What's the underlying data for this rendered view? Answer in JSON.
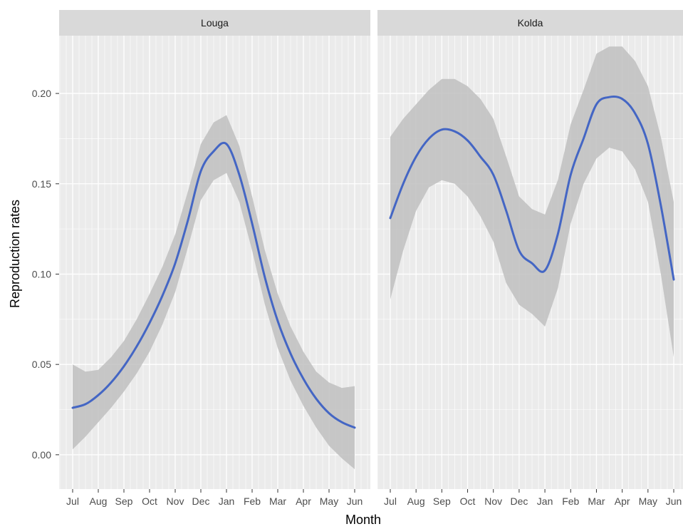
{
  "chart_data": {
    "type": "line",
    "xlabel": "Month",
    "ylabel": "Reproduction rates",
    "ylim": [
      -0.019,
      0.232
    ],
    "y_ticks": [
      {
        "value": 0.0,
        "label": "0.00"
      },
      {
        "value": 0.05,
        "label": "0.05"
      },
      {
        "value": 0.1,
        "label": "0.10"
      },
      {
        "value": 0.15,
        "label": "0.15"
      },
      {
        "value": 0.2,
        "label": "0.20"
      }
    ],
    "x_ticks": [
      "Jul",
      "Aug",
      "Sep",
      "Oct",
      "Nov",
      "Dec",
      "Jan",
      "Feb",
      "Mar",
      "Apr",
      "May",
      "Jun"
    ],
    "grid": true,
    "colors": {
      "line": "#4466c4",
      "ribbon": "#c0c0c0",
      "panel_bg": "#ebebeb",
      "strip_bg": "#d9d9d9",
      "grid": "#ffffff"
    },
    "panels": [
      {
        "title": "Louga",
        "series": [
          {
            "name": "",
            "x": [
              1,
              1.5,
              2,
              2.5,
              3,
              3.5,
              4,
              4.5,
              5,
              5.5,
              6,
              6.5,
              7,
              7.5,
              8,
              8.5,
              9,
              9.5,
              10,
              10.5,
              11,
              11.5,
              12
            ],
            "y": [
              0.026,
              0.028,
              0.033,
              0.04,
              0.049,
              0.06,
              0.073,
              0.088,
              0.106,
              0.13,
              0.157,
              0.168,
              0.172,
              0.155,
              0.128,
              0.098,
              0.074,
              0.056,
              0.042,
              0.031,
              0.023,
              0.018,
              0.015
            ],
            "lower": [
              0.003,
              0.01,
              0.018,
              0.026,
              0.035,
              0.045,
              0.057,
              0.072,
              0.09,
              0.115,
              0.141,
              0.152,
              0.156,
              0.14,
              0.113,
              0.083,
              0.059,
              0.041,
              0.027,
              0.015,
              0.005,
              -0.002,
              -0.008
            ],
            "upper": [
              0.05,
              0.046,
              0.047,
              0.054,
              0.063,
              0.075,
              0.089,
              0.104,
              0.122,
              0.146,
              0.172,
              0.184,
              0.188,
              0.171,
              0.143,
              0.113,
              0.089,
              0.071,
              0.057,
              0.046,
              0.04,
              0.037,
              0.038
            ]
          }
        ]
      },
      {
        "title": "Kolda",
        "series": [
          {
            "name": "",
            "x": [
              1,
              1.5,
              2,
              2.5,
              3,
              3.5,
              4,
              4.5,
              5,
              5.5,
              6,
              6.5,
              7,
              7.5,
              8,
              8.5,
              9,
              9.5,
              10,
              10.5,
              11,
              11.5,
              12
            ],
            "y": [
              0.131,
              0.15,
              0.165,
              0.175,
              0.18,
              0.179,
              0.174,
              0.165,
              0.155,
              0.135,
              0.113,
              0.106,
              0.102,
              0.122,
              0.155,
              0.175,
              0.194,
              0.198,
              0.197,
              0.189,
              0.172,
              0.138,
              0.097
            ],
            "lower": [
              0.086,
              0.113,
              0.135,
              0.148,
              0.152,
              0.15,
              0.143,
              0.132,
              0.118,
              0.095,
              0.083,
              0.078,
              0.071,
              0.092,
              0.128,
              0.15,
              0.164,
              0.17,
              0.168,
              0.158,
              0.14,
              0.1,
              0.054
            ],
            "upper": [
              0.176,
              0.186,
              0.194,
              0.202,
              0.208,
              0.208,
              0.204,
              0.197,
              0.186,
              0.165,
              0.143,
              0.136,
              0.133,
              0.152,
              0.183,
              0.202,
              0.222,
              0.226,
              0.226,
              0.218,
              0.204,
              0.176,
              0.14
            ]
          }
        ]
      }
    ]
  }
}
